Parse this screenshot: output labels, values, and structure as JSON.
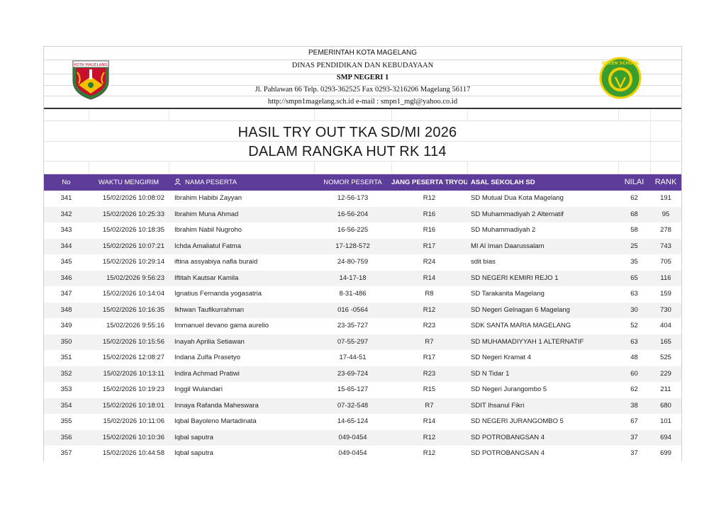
{
  "letterhead": {
    "line1": "PEMERINTAH KOTA MAGELANG",
    "line2": "DINAS PENDIDIKAN DAN KEBUDAYAAN",
    "line3": "SMP NEGERI 1",
    "line4": "Jl. Pahlawan 66 Telp. 0293-362525 Fax 0293-3216206 Magelang 56117",
    "line5": "http://smpn1magelang.sch.id e-mail : smpn1_mgl@yahoo.co.id",
    "logo_left_text": "KOTA MAGELANG",
    "logo_right_text": "GREEN SCHOOL",
    "colors": {
      "shield_red": "#c8102e",
      "shield_green": "#2e7d32",
      "shield_yellow": "#f2c200",
      "badge_green": "#3a9d2f",
      "badge_yellow": "#f0d000"
    }
  },
  "titles": {
    "title1": "HASIL TRY OUT TKA SD/MI 2026",
    "title2": "DALAM RANGKA HUT RK 114"
  },
  "table": {
    "header_color": "#5e3c99",
    "columns": {
      "no": "No",
      "waktu": "WAKTU MENGIRIM",
      "nama": "NAMA PESERTA",
      "nomor": "NOMOR PESERTA",
      "ruang": "JANG PESERTA TRYOU",
      "asal": "ASAL SEKOLAH SD",
      "nilai": "NILAI",
      "rank": "RANK"
    },
    "rows": [
      {
        "no": "341",
        "waktu": "15/02/2026 10:08:02",
        "nama": "Ibrahim Habibi Zayyan",
        "nomor": "12-56-173",
        "ruang": "R12",
        "asal": "SD Mutual Dua Kota Magelang",
        "nilai": "62",
        "rank": "191"
      },
      {
        "no": "342",
        "waktu": "15/02/2026 10:25:33",
        "nama": "Ibrahim Muna Ahmad",
        "nomor": "16-56-204",
        "ruang": "R16",
        "asal": "SD Muhammadiyah 2 Alternatif",
        "nilai": "68",
        "rank": "95"
      },
      {
        "no": "343",
        "waktu": "15/02/2026 10:18:35",
        "nama": "Ibrahim Nabil Nugroho",
        "nomor": "16-56-225",
        "ruang": "R16",
        "asal": "SD Muhammadiyah 2",
        "nilai": "58",
        "rank": "278"
      },
      {
        "no": "344",
        "waktu": "15/02/2026 10:07:21",
        "nama": "Ichda Amaliatul Fatma",
        "nomor": "17-128-572",
        "ruang": "R17",
        "asal": "MI Al Iman Daarussalam",
        "nilai": "25",
        "rank": "743"
      },
      {
        "no": "345",
        "waktu": "15/02/2026 10:29:14",
        "nama": "iftina assyabiya nafla buraid",
        "nomor": "24-80-759",
        "ruang": "R24",
        "asal": "sdit bias",
        "nilai": "35",
        "rank": "705"
      },
      {
        "no": "346",
        "waktu": "15/02/2026 9:56:23",
        "nama": "Iftitah Kautsar Kamila",
        "nomor": "14-17-18",
        "ruang": "R14",
        "asal": "SD NEGERI KEMIRI REJO 1",
        "nilai": "65",
        "rank": "116"
      },
      {
        "no": "347",
        "waktu": "15/02/2026 10:14:04",
        "nama": "Ignatius Fernanda yogasatria",
        "nomor": "8-31-486",
        "ruang": "R8",
        "asal": "SD Tarakanita Magelang",
        "nilai": "63",
        "rank": "159"
      },
      {
        "no": "348",
        "waktu": "15/02/2026 10:16:35",
        "nama": "Ikhwan Taufikurrahman",
        "nomor": "016 -0564",
        "ruang": "R12",
        "asal": "SD Negeri Gelnagan 6 Magelang",
        "nilai": "30",
        "rank": "730"
      },
      {
        "no": "349",
        "waktu": "15/02/2026 9:55:16",
        "nama": "Immanuel devano gama aurelio",
        "nomor": "23-35-727",
        "ruang": "R23",
        "asal": "SDK SANTA MARIA MAGELANG",
        "nilai": "52",
        "rank": "404"
      },
      {
        "no": "350",
        "waktu": "15/02/2026 10:15:56",
        "nama": "Inayah Aprilia Setiawan",
        "nomor": "07-55-297",
        "ruang": "R7",
        "asal": "SD MUHAMADIYYAH 1 ALTERNATIF",
        "nilai": "63",
        "rank": "165"
      },
      {
        "no": "351",
        "waktu": "15/02/2026 12:08:27",
        "nama": "Indana Zulfa Prasetyo",
        "nomor": "17-44-51",
        "ruang": "R17",
        "asal": "SD Negeri Kramat 4",
        "nilai": "48",
        "rank": "525"
      },
      {
        "no": "352",
        "waktu": "15/02/2026 10:13:11",
        "nama": "Indira Achmad Pratiwi",
        "nomor": "23-69-724",
        "ruang": "R23",
        "asal": "SD N Tidar 1",
        "nilai": "60",
        "rank": "229"
      },
      {
        "no": "353",
        "waktu": "15/02/2026 10:19:23",
        "nama": "Inggil Wulandari",
        "nomor": "15-65-127",
        "ruang": "R15",
        "asal": "SD Negeri Jurangombo 5",
        "nilai": "62",
        "rank": "211"
      },
      {
        "no": "354",
        "waktu": "15/02/2026 10:18:01",
        "nama": "Innaya Rafanda Maheswara",
        "nomor": "07-32-548",
        "ruang": "R7",
        "asal": "SDIT Ihsanul Fikri",
        "nilai": "38",
        "rank": "680"
      },
      {
        "no": "355",
        "waktu": "15/02/2026 10:11:06",
        "nama": "Iqbal Bayoleno Martadinata",
        "nomor": "14-65-124",
        "ruang": "R14",
        "asal": "SD NEGERI JURANGOMBO 5",
        "nilai": "67",
        "rank": "101"
      },
      {
        "no": "356",
        "waktu": "15/02/2026 10:10:36",
        "nama": "Iqbal saputra",
        "nomor": "049-0454",
        "ruang": "R12",
        "asal": "SD POTROBANGSAN 4",
        "nilai": "37",
        "rank": "694"
      },
      {
        "no": "357",
        "waktu": "15/02/2026 10:44:58",
        "nama": "Iqbal saputra",
        "nomor": "049-0454",
        "ruang": "R12",
        "asal": "SD POTROBANGSAN 4",
        "nilai": "37",
        "rank": "699"
      }
    ]
  }
}
